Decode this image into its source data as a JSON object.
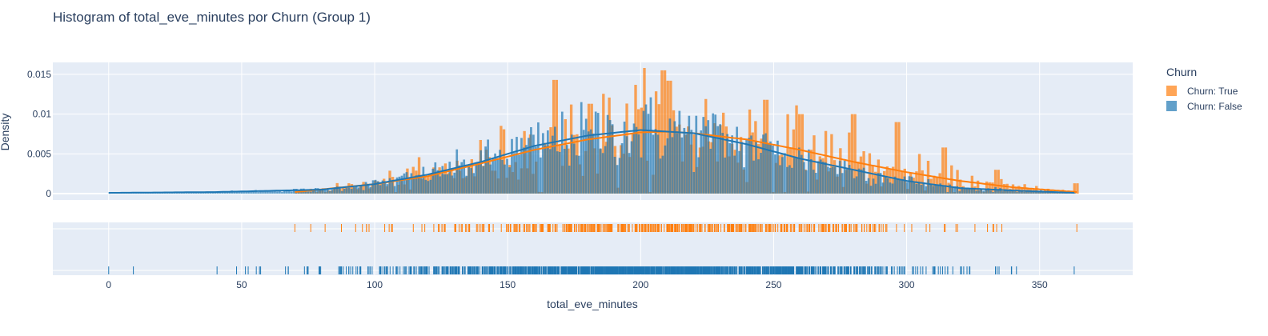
{
  "chart_data": {
    "type": "histogram",
    "title": "Histogram of total_eve_minutes por Churn (Group 1)",
    "xlabel": "total_eve_minutes",
    "ylabel": "Density",
    "xlim": [
      -21,
      385
    ],
    "ylim": [
      -0.0008,
      0.0165
    ],
    "xticks": [
      0,
      50,
      100,
      150,
      200,
      250,
      300,
      350
    ],
    "yticks": [
      0,
      0.005,
      0.01,
      0.015
    ],
    "ytick_labels": [
      "0",
      "0.005",
      "0.01",
      "0.015"
    ],
    "grid": true,
    "legend_title": "Churn",
    "legend_position": "right",
    "series": [
      {
        "name": "Churn: True",
        "color": "#ff7f0e",
        "kde_mean": 211,
        "kde_sd": 51,
        "kde_peak": 0.0078,
        "range": [
          70,
          364
        ],
        "density_profile": {
          "x": [
            70,
            100,
            120,
            140,
            160,
            180,
            200,
            210,
            220,
            240,
            260,
            280,
            300,
            320,
            340,
            364
          ],
          "y": [
            0.0002,
            0.0012,
            0.0022,
            0.0038,
            0.0055,
            0.0068,
            0.0077,
            0.0078,
            0.0076,
            0.0068,
            0.0055,
            0.004,
            0.0027,
            0.0016,
            0.0008,
            0.0002
          ]
        },
        "peaks": [
          {
            "x": 167,
            "y": 0.0143
          },
          {
            "x": 208,
            "y": 0.0155
          },
          {
            "x": 210,
            "y": 0.0142
          },
          {
            "x": 180,
            "y": 0.0113
          },
          {
            "x": 246,
            "y": 0.0118
          },
          {
            "x": 260,
            "y": 0.01
          },
          {
            "x": 280,
            "y": 0.01
          },
          {
            "x": 296,
            "y": 0.009
          },
          {
            "x": 314,
            "y": 0.0058
          },
          {
            "x": 334,
            "y": 0.003
          },
          {
            "x": 363,
            "y": 0.0013
          }
        ]
      },
      {
        "name": "Churn: False",
        "color": "#1f77b4",
        "kde_mean": 201,
        "kde_sd": 51,
        "kde_peak": 0.008,
        "range": [
          0,
          363
        ],
        "density_profile": {
          "x": [
            0,
            40,
            80,
            100,
            120,
            140,
            160,
            180,
            200,
            220,
            240,
            260,
            280,
            300,
            320,
            340,
            363
          ],
          "y": [
            0.0001,
            0.0002,
            0.0005,
            0.0012,
            0.0024,
            0.004,
            0.006,
            0.0073,
            0.008,
            0.0076,
            0.0062,
            0.0044,
            0.003,
            0.0016,
            0.0007,
            0.0004,
            0.0001
          ]
        }
      }
    ]
  }
}
